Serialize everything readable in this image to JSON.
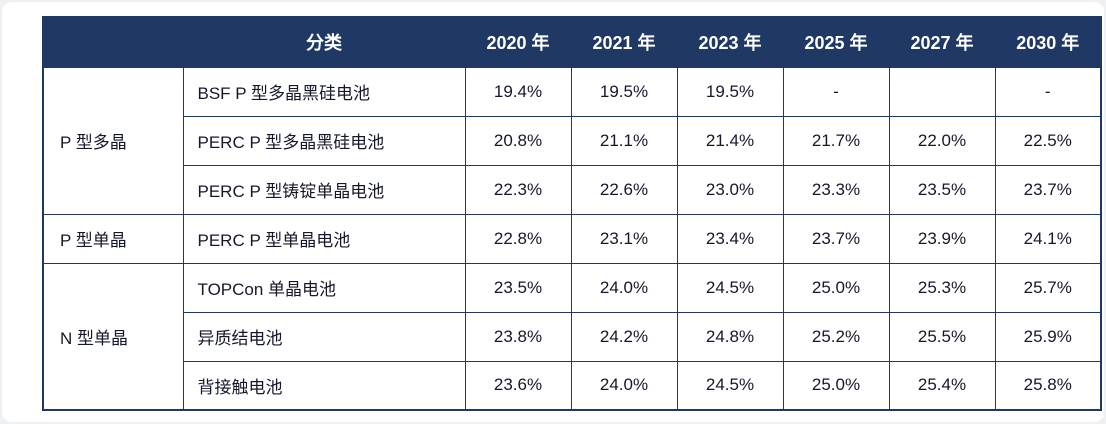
{
  "colors": {
    "header_bg": "#1f3864",
    "border": "#1f3864",
    "header_text": "#ffffff",
    "body_text": "#15182b",
    "body_bg": "#ffffff"
  },
  "chart_data": {
    "type": "table",
    "header": {
      "corner": "",
      "category": "分类",
      "years": [
        "2020 年",
        "2021 年",
        "2023 年",
        "2025 年",
        "2027 年",
        "2030 年"
      ]
    },
    "groups": [
      {
        "label": "P 型多晶",
        "rows": [
          {
            "name": "BSF P 型多晶黑硅电池",
            "values": [
              "19.4%",
              "19.5%",
              "19.5%",
              "-",
              "",
              "-"
            ]
          },
          {
            "name": "PERC P 型多晶黑硅电池",
            "values": [
              "20.8%",
              "21.1%",
              "21.4%",
              "21.7%",
              "22.0%",
              "22.5%"
            ]
          },
          {
            "name": "PERC P 型铸锭单晶电池",
            "values": [
              "22.3%",
              "22.6%",
              "23.0%",
              "23.3%",
              "23.5%",
              "23.7%"
            ]
          }
        ]
      },
      {
        "label": "P 型单晶",
        "rows": [
          {
            "name": "PERC P 型单晶电池",
            "values": [
              "22.8%",
              "23.1%",
              "23.4%",
              "23.7%",
              "23.9%",
              "24.1%"
            ]
          }
        ]
      },
      {
        "label": "N 型单晶",
        "rows": [
          {
            "name": "TOPCon 单晶电池",
            "values": [
              "23.5%",
              "24.0%",
              "24.5%",
              "25.0%",
              "25.3%",
              "25.7%"
            ]
          },
          {
            "name": "异质结电池",
            "values": [
              "23.8%",
              "24.2%",
              "24.8%",
              "25.2%",
              "25.5%",
              "25.9%"
            ]
          },
          {
            "name": "背接触电池",
            "values": [
              "23.6%",
              "24.0%",
              "24.5%",
              "25.0%",
              "25.4%",
              "25.8%"
            ]
          }
        ]
      }
    ]
  }
}
